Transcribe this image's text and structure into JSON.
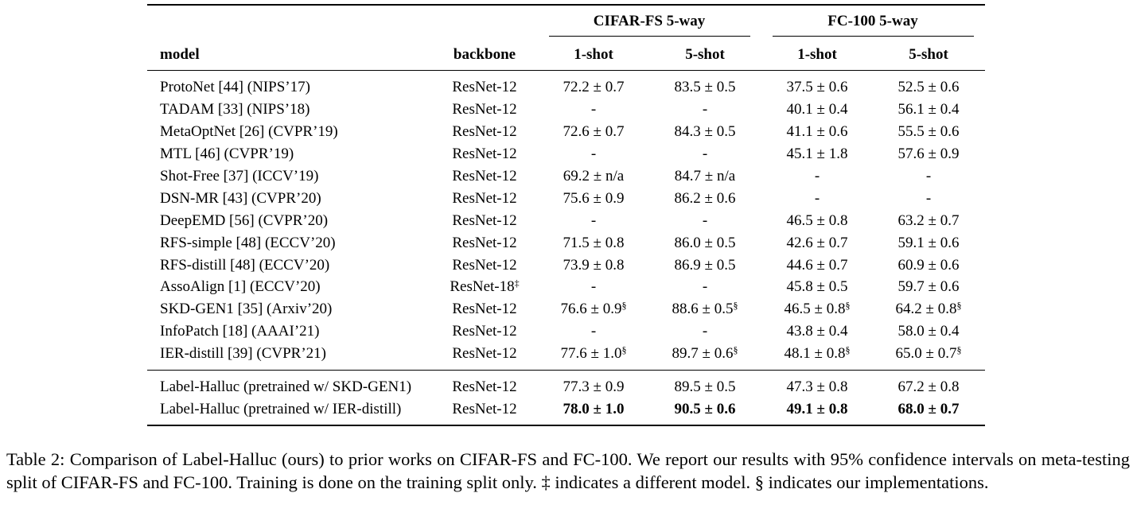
{
  "table": {
    "group_headers": [
      "CIFAR-FS 5-way",
      "FC-100 5-way"
    ],
    "column_headers": [
      "model",
      "backbone",
      "1-shot",
      "5-shot",
      "1-shot",
      "5-shot"
    ],
    "rows": [
      {
        "model": "ProtoNet [44] (NIPS’17)",
        "backbone": "ResNet-12",
        "c1": "72.2 ± 0.7",
        "c2": "83.5 ± 0.5",
        "c3": "37.5 ± 0.6",
        "c4": "52.5 ± 0.6"
      },
      {
        "model": "TADAM [33] (NIPS’18)",
        "backbone": "ResNet-12",
        "c1": "-",
        "c2": "-",
        "c3": "40.1 ± 0.4",
        "c4": "56.1 ± 0.4"
      },
      {
        "model": "MetaOptNet [26] (CVPR’19)",
        "backbone": "ResNet-12",
        "c1": "72.6 ± 0.7",
        "c2": "84.3 ± 0.5",
        "c3": "41.1 ± 0.6",
        "c4": "55.5 ± 0.6"
      },
      {
        "model": "MTL [46] (CVPR’19)",
        "backbone": "ResNet-12",
        "c1": "-",
        "c2": "-",
        "c3": "45.1 ± 1.8",
        "c4": "57.6 ± 0.9"
      },
      {
        "model": "Shot-Free [37] (ICCV’19)",
        "backbone": "ResNet-12",
        "c1": "69.2 ± n/a",
        "c2": "84.7 ± n/a",
        "c3": "-",
        "c4": "-"
      },
      {
        "model": "DSN-MR [43] (CVPR’20)",
        "backbone": "ResNet-12",
        "c1": "75.6 ± 0.9",
        "c2": "86.2 ± 0.6",
        "c3": "-",
        "c4": "-"
      },
      {
        "model": "DeepEMD [56] (CVPR’20)",
        "backbone": "ResNet-12",
        "c1": "-",
        "c2": "-",
        "c3": "46.5 ± 0.8",
        "c4": "63.2 ± 0.7"
      },
      {
        "model": "RFS-simple [48] (ECCV’20)",
        "backbone": "ResNet-12",
        "c1": "71.5 ± 0.8",
        "c2": "86.0 ± 0.5",
        "c3": "42.6 ± 0.7",
        "c4": "59.1 ± 0.6"
      },
      {
        "model": "RFS-distill [48] (ECCV’20)",
        "backbone": "ResNet-12",
        "c1": "73.9 ± 0.8",
        "c2": "86.9 ± 0.5",
        "c3": "44.6 ± 0.7",
        "c4": "60.9 ± 0.6"
      },
      {
        "model": "AssoAlign [1] (ECCV’20)",
        "backbone": "ResNet-18",
        "c1": "-",
        "c2": "-",
        "c3": "45.8 ± 0.5",
        "c4": "59.7 ± 0.6"
      },
      {
        "model": "SKD-GEN1 [35] (Arxiv’20)",
        "backbone": "ResNet-12",
        "c1": "76.6 ± 0.9",
        "c2": "88.6 ± 0.5",
        "c3": "46.5 ± 0.8",
        "c4": "64.2 ± 0.8"
      },
      {
        "model": "InfoPatch [18] (AAAI’21)",
        "backbone": "ResNet-12",
        "c1": "-",
        "c2": "-",
        "c3": "43.8 ± 0.4",
        "c4": "58.0 ± 0.4"
      },
      {
        "model": "IER-distill [39] (CVPR’21)",
        "backbone": "ResNet-12",
        "c1": "77.6 ± 1.0",
        "c2": "89.7 ± 0.6",
        "c3": "48.1 ± 0.8",
        "c4": "65.0 ± 0.7"
      },
      {
        "model": "Label-Halluc (pretrained w/ SKD-GEN1)",
        "backbone": "ResNet-12",
        "c1": "77.3 ± 0.9",
        "c2": "89.5 ± 0.5",
        "c3": "47.3 ± 0.8",
        "c4": "67.2 ± 0.8"
      },
      {
        "model": "Label-Halluc (pretrained w/ IER-distill)",
        "backbone": "ResNet-12",
        "c1": "78.0 ± 1.0",
        "c2": "90.5 ± 0.6",
        "c3": "49.1 ± 0.8",
        "c4": "68.0 ± 0.7"
      }
    ],
    "marks": {
      "double_dagger": "‡",
      "section": "§"
    }
  },
  "caption": "Table 2: Comparison of Label-Halluc (ours) to prior works on CIFAR-FS and FC-100. We report our results with 95% confidence intervals on meta-testing split of CIFAR-FS and FC-100. Training is done on the training split only. ‡ indicates a different model. § indicates our implementations."
}
